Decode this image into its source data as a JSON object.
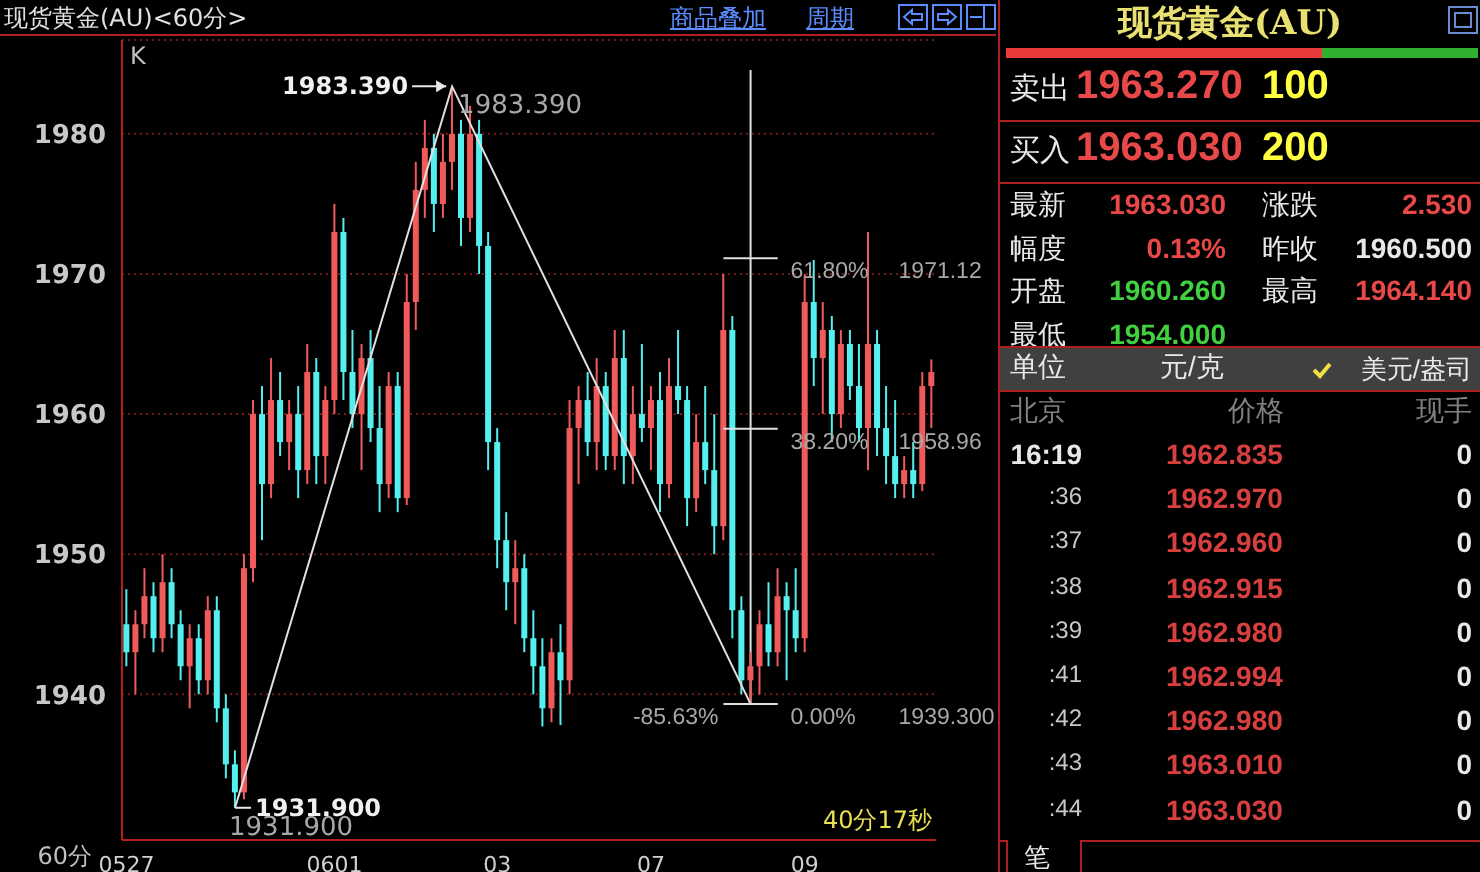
{
  "chart_data": [
    {
      "type": "candlestick",
      "title": "现货黄金(AU)<60分>",
      "categories": [
        "0527",
        null,
        null,
        null,
        null,
        null,
        null,
        null,
        null,
        null,
        null,
        null,
        null,
        null,
        null,
        null,
        null,
        null,
        null,
        null,
        null,
        null,
        null,
        "0601",
        null,
        null,
        null,
        null,
        null,
        null,
        null,
        null,
        null,
        null,
        null,
        null,
        null,
        null,
        null,
        null,
        null,
        "03",
        null,
        null,
        null,
        null,
        null,
        null,
        null,
        null,
        null,
        null,
        null,
        null,
        null,
        null,
        null,
        null,
        "07",
        null,
        null,
        null,
        null,
        null,
        null,
        null,
        null,
        null,
        null,
        null,
        null,
        null,
        null,
        null,
        null,
        "09",
        null,
        null,
        null,
        null,
        null,
        null,
        null,
        null,
        null,
        null,
        null,
        null,
        null,
        null
      ],
      "ohlc": [
        [
          1945,
          1947.5,
          1942,
          1943
        ],
        [
          1943,
          1946,
          1940,
          1945
        ],
        [
          1945,
          1949,
          1944,
          1947
        ],
        [
          1947,
          1948,
          1943,
          1944
        ],
        [
          1944,
          1950,
          1943,
          1948
        ],
        [
          1948,
          1949,
          1944,
          1945
        ],
        [
          1945,
          1946,
          1941,
          1942
        ],
        [
          1942,
          1945,
          1939,
          1944
        ],
        [
          1944,
          1945,
          1940,
          1941
        ],
        [
          1941,
          1947,
          1940,
          1946
        ],
        [
          1946,
          1947,
          1938,
          1939
        ],
        [
          1939,
          1940,
          1934,
          1935
        ],
        [
          1935,
          1936,
          1931.9,
          1933
        ],
        [
          1933,
          1950,
          1932.5,
          1949
        ],
        [
          1949,
          1961,
          1948,
          1960
        ],
        [
          1960,
          1962,
          1951,
          1955
        ],
        [
          1955,
          1964,
          1954,
          1961
        ],
        [
          1961,
          1963,
          1957,
          1958
        ],
        [
          1958,
          1961,
          1956,
          1960
        ],
        [
          1960,
          1962,
          1954,
          1956
        ],
        [
          1956,
          1965,
          1955,
          1963
        ],
        [
          1963,
          1964,
          1955,
          1957
        ],
        [
          1957,
          1962,
          1955,
          1961
        ],
        [
          1961,
          1975,
          1960,
          1973
        ],
        [
          1973,
          1974,
          1961,
          1963
        ],
        [
          1963,
          1966,
          1959,
          1960
        ],
        [
          1960,
          1965,
          1956,
          1964
        ],
        [
          1964,
          1966,
          1958,
          1959
        ],
        [
          1959,
          1962,
          1953,
          1955
        ],
        [
          1955,
          1963,
          1954,
          1962
        ],
        [
          1962,
          1963,
          1953,
          1954
        ],
        [
          1954,
          1970,
          1953.5,
          1968
        ],
        [
          1968,
          1978,
          1966,
          1976
        ],
        [
          1976,
          1981,
          1974,
          1979
        ],
        [
          1979,
          1980,
          1973,
          1975
        ],
        [
          1975,
          1980,
          1974,
          1978
        ],
        [
          1978,
          1983.39,
          1976,
          1980
        ],
        [
          1980,
          1981,
          1972,
          1974
        ],
        [
          1974,
          1982,
          1973,
          1980
        ],
        [
          1980,
          1981,
          1970,
          1972
        ],
        [
          1972,
          1973,
          1956,
          1958
        ],
        [
          1958,
          1959,
          1949,
          1951
        ],
        [
          1951,
          1953,
          1946,
          1948
        ],
        [
          1948,
          1951,
          1945,
          1949
        ],
        [
          1949,
          1950,
          1943,
          1944
        ],
        [
          1944,
          1946,
          1940,
          1942
        ],
        [
          1942,
          1944,
          1937.7,
          1939
        ],
        [
          1939,
          1944,
          1938,
          1943
        ],
        [
          1943,
          1945,
          1937.8,
          1941
        ],
        [
          1941,
          1961,
          1940,
          1959
        ],
        [
          1959,
          1962,
          1955,
          1961
        ],
        [
          1961,
          1963,
          1957,
          1958
        ],
        [
          1958,
          1964,
          1956,
          1962
        ],
        [
          1962,
          1963,
          1956,
          1957
        ],
        [
          1957,
          1966,
          1956,
          1964
        ],
        [
          1964,
          1966,
          1955,
          1957
        ],
        [
          1957,
          1962,
          1955,
          1960
        ],
        [
          1960,
          1965,
          1958,
          1959
        ],
        [
          1959,
          1962,
          1956,
          1961
        ],
        [
          1961,
          1963,
          1953,
          1955
        ],
        [
          1955,
          1964,
          1954,
          1962
        ],
        [
          1962,
          1966,
          1960,
          1961
        ],
        [
          1961,
          1962,
          1952,
          1954
        ],
        [
          1954,
          1960,
          1953,
          1958
        ],
        [
          1958,
          1962,
          1955,
          1956
        ],
        [
          1956,
          1960,
          1950,
          1952
        ],
        [
          1952,
          1970,
          1951,
          1966
        ],
        [
          1966,
          1967,
          1944,
          1946
        ],
        [
          1946,
          1947,
          1940,
          1941
        ],
        [
          1941,
          1943,
          1939.3,
          1942
        ],
        [
          1942,
          1946,
          1940,
          1945
        ],
        [
          1945,
          1948,
          1942,
          1943
        ],
        [
          1943,
          1949,
          1942,
          1947
        ],
        [
          1947,
          1948,
          1941,
          1946
        ],
        [
          1946,
          1949,
          1943,
          1944
        ],
        [
          1944,
          1970,
          1943,
          1968
        ],
        [
          1968,
          1971,
          1962,
          1964
        ],
        [
          1964,
          1968,
          1960,
          1966
        ],
        [
          1966,
          1967,
          1958,
          1960
        ],
        [
          1960,
          1966,
          1959,
          1965
        ],
        [
          1965,
          1966,
          1961,
          1962
        ],
        [
          1962,
          1965,
          1958,
          1959
        ],
        [
          1959,
          1973,
          1956,
          1965
        ],
        [
          1965,
          1966,
          1957,
          1959
        ],
        [
          1959,
          1962,
          1955,
          1957
        ],
        [
          1957,
          1961,
          1954,
          1955
        ],
        [
          1955,
          1957,
          1954,
          1956
        ],
        [
          1956,
          1958,
          1954,
          1955
        ],
        [
          1955,
          1963,
          1954.5,
          1962
        ],
        [
          1962,
          1963.9,
          1959,
          1963
        ]
      ],
      "colors": [
        "#54f0f0",
        "#f05a5a",
        "#f05a5a",
        "#54f0f0",
        "#f05a5a",
        "#54f0f0",
        "#54f0f0",
        "#f05a5a",
        "#54f0f0",
        "#f05a5a",
        "#54f0f0",
        "#54f0f0",
        "#54f0f0",
        "#f05a5a",
        "#f05a5a",
        "#54f0f0",
        "#f05a5a",
        "#54f0f0",
        "#f05a5a",
        "#54f0f0",
        "#f05a5a",
        "#54f0f0",
        "#f05a5a",
        "#f05a5a",
        "#54f0f0",
        "#54f0f0",
        "#f05a5a",
        "#54f0f0",
        "#54f0f0",
        "#f05a5a",
        "#54f0f0",
        "#f05a5a",
        "#f05a5a",
        "#f05a5a",
        "#54f0f0",
        "#f05a5a",
        "#f05a5a",
        "#54f0f0",
        "#f05a5a",
        "#54f0f0",
        "#54f0f0",
        "#54f0f0",
        "#54f0f0",
        "#f05a5a",
        "#54f0f0",
        "#54f0f0",
        "#54f0f0",
        "#f05a5a",
        "#54f0f0",
        "#f05a5a",
        "#f05a5a",
        "#54f0f0",
        "#f05a5a",
        "#54f0f0",
        "#f05a5a",
        "#54f0f0",
        "#f05a5a",
        "#54f0f0",
        "#f05a5a",
        "#54f0f0",
        "#f05a5a",
        "#54f0f0",
        "#54f0f0",
        "#f05a5a",
        "#54f0f0",
        "#54f0f0",
        "#f05a5a",
        "#54f0f0",
        "#54f0f0",
        "#f05a5a",
        "#f05a5a",
        "#54f0f0",
        "#f05a5a",
        "#54f0f0",
        "#54f0f0",
        "#f05a5a",
        "#54f0f0",
        "#f05a5a",
        "#54f0f0",
        "#f05a5a",
        "#54f0f0",
        "#54f0f0",
        "#f05a5a",
        "#54f0f0",
        "#54f0f0",
        "#54f0f0",
        "#f05a5a",
        "#54f0f0",
        "#f05a5a",
        "#f05a5a"
      ],
      "series": [
        {
          "type": "line",
          "color": "#e0e0e0",
          "values": [
            null,
            null,
            null,
            null,
            null,
            null,
            null,
            null,
            null,
            null,
            null,
            null,
            1931.9,
            null,
            null,
            null,
            null,
            null,
            null,
            null,
            null,
            null,
            null,
            null,
            null,
            null,
            null,
            null,
            null,
            null,
            null,
            null,
            null,
            null,
            null,
            null,
            1983.39,
            null,
            null,
            null,
            null,
            null,
            null,
            null,
            null,
            null,
            null,
            null,
            null,
            null,
            null,
            null,
            null,
            null,
            null,
            null,
            null,
            null,
            null,
            null,
            null,
            null,
            null,
            null,
            null,
            null,
            null,
            null,
            null,
            1939.3,
            null,
            null,
            null,
            null,
            null,
            null,
            null,
            null,
            null,
            null,
            null,
            null,
            null,
            null,
            null,
            null,
            null,
            null,
            null,
            null
          ],
          "value_labels": [
            null,
            null,
            null,
            null,
            null,
            null,
            null,
            null,
            null,
            null,
            null,
            null,
            "1931.900",
            null,
            null,
            null,
            null,
            null,
            null,
            null,
            null,
            null,
            null,
            null,
            null,
            null,
            null,
            null,
            null,
            null,
            null,
            null,
            null,
            null,
            null,
            null,
            "1983.390",
            null,
            null,
            null,
            null,
            null,
            null,
            null,
            null,
            null,
            null,
            null,
            null,
            null,
            null,
            null,
            null,
            null,
            null,
            null,
            null,
            null,
            null,
            null,
            null,
            null,
            null,
            null,
            null,
            null,
            null,
            null,
            null,
            null,
            null,
            null,
            null,
            null,
            null,
            null,
            null,
            null,
            null,
            null,
            null,
            null,
            null,
            null,
            null,
            null,
            null,
            null,
            null,
            null
          ]
        },
        {
          "type": "line",
          "color": "#e0e0e0",
          "values": [
            null,
            null,
            null,
            null,
            null,
            null,
            null,
            null,
            null,
            null,
            null,
            null,
            null,
            null,
            null,
            null,
            null,
            null,
            null,
            null,
            null,
            null,
            null,
            null,
            null,
            null,
            null,
            null,
            null,
            null,
            null,
            null,
            null,
            null,
            null,
            null,
            null,
            null,
            null,
            null,
            null,
            null,
            null,
            null,
            null,
            null,
            null,
            null,
            null,
            null,
            null,
            null,
            null,
            null,
            null,
            null,
            null,
            null,
            null,
            null,
            null,
            null,
            null,
            null,
            null,
            null,
            1971.12,
            1971.12,
            1971.12,
            1971.12,
            1971.12,
            1971.12,
            1971.12,
            null,
            null,
            null,
            null,
            null,
            null,
            null,
            null,
            null,
            null,
            null,
            null,
            null,
            null,
            null,
            null,
            null
          ]
        },
        {
          "type": "line",
          "color": "#e0e0e0",
          "values": [
            null,
            null,
            null,
            null,
            null,
            null,
            null,
            null,
            null,
            null,
            null,
            null,
            null,
            null,
            null,
            null,
            null,
            null,
            null,
            null,
            null,
            null,
            null,
            null,
            null,
            null,
            null,
            null,
            null,
            null,
            null,
            null,
            null,
            null,
            null,
            null,
            null,
            null,
            null,
            null,
            null,
            null,
            null,
            null,
            null,
            null,
            null,
            null,
            null,
            null,
            null,
            null,
            null,
            null,
            null,
            null,
            null,
            null,
            null,
            null,
            null,
            null,
            null,
            null,
            null,
            null,
            1958.96,
            1958.96,
            1958.96,
            1958.96,
            1958.96,
            1958.96,
            1958.96,
            null,
            null,
            null,
            null,
            null,
            null,
            null,
            null,
            null,
            null,
            null,
            null,
            null,
            null,
            null,
            null,
            null
          ]
        },
        {
          "type": "line",
          "color": "#e0e0e0",
          "values": [
            null,
            null,
            null,
            null,
            null,
            null,
            null,
            null,
            null,
            null,
            null,
            null,
            null,
            null,
            null,
            null,
            null,
            null,
            null,
            null,
            null,
            null,
            null,
            null,
            null,
            null,
            null,
            null,
            null,
            null,
            null,
            null,
            null,
            null,
            null,
            null,
            null,
            null,
            null,
            null,
            null,
            null,
            null,
            null,
            null,
            null,
            null,
            null,
            null,
            null,
            null,
            null,
            null,
            null,
            null,
            null,
            null,
            null,
            null,
            null,
            null,
            null,
            null,
            null,
            null,
            null,
            1939.3,
            1939.3,
            1939.3,
            1939.3,
            1939.3,
            1939.3,
            1939.3,
            null,
            null,
            null,
            null,
            null,
            null,
            null,
            null,
            null,
            null,
            null,
            null,
            null,
            null,
            null,
            null,
            null
          ]
        }
      ],
      "ylim": [
        1929.6,
        1986.7
      ],
      "yticks": [
        1940,
        1950,
        1960,
        1970,
        1980
      ],
      "grid": "y",
      "xlabel": "60分",
      "annotations": [
        "K",
        "40分17秒",
        "1983.390",
        "1931.900",
        "61.80%",
        "38.20%",
        "-85.63%",
        "0.00%",
        "1971.12",
        "1958.96",
        "1939.300",
        "商品叠加",
        "周期"
      ]
    },
    {
      "type": "other",
      "title": "现货黄金(AU)",
      "annotations": [
        "卖出",
        "1963.270",
        "100",
        "买入",
        "1963.030",
        "200",
        "最新",
        "1963.030",
        "涨跌",
        "2.530",
        "幅度",
        "0.13%",
        "昨收",
        "1960.500",
        "开盘",
        "1960.260",
        "最高",
        "1964.140",
        "最低",
        "1954.000",
        "单位",
        "元/克",
        "美元/盎司",
        "北京",
        "价格",
        "现手",
        "16:19",
        "1962.835",
        "0",
        ":36",
        "1962.970",
        "0",
        ":37",
        "1962.960",
        "0",
        ":38",
        "1962.915",
        "0",
        ":39",
        "1962.980",
        "0",
        ":41",
        "1962.994",
        "0",
        ":42",
        "1962.980",
        "0",
        ":43",
        "1963.010",
        "0",
        ":44",
        "1963.030",
        "0",
        "笔"
      ]
    }
  ]
}
